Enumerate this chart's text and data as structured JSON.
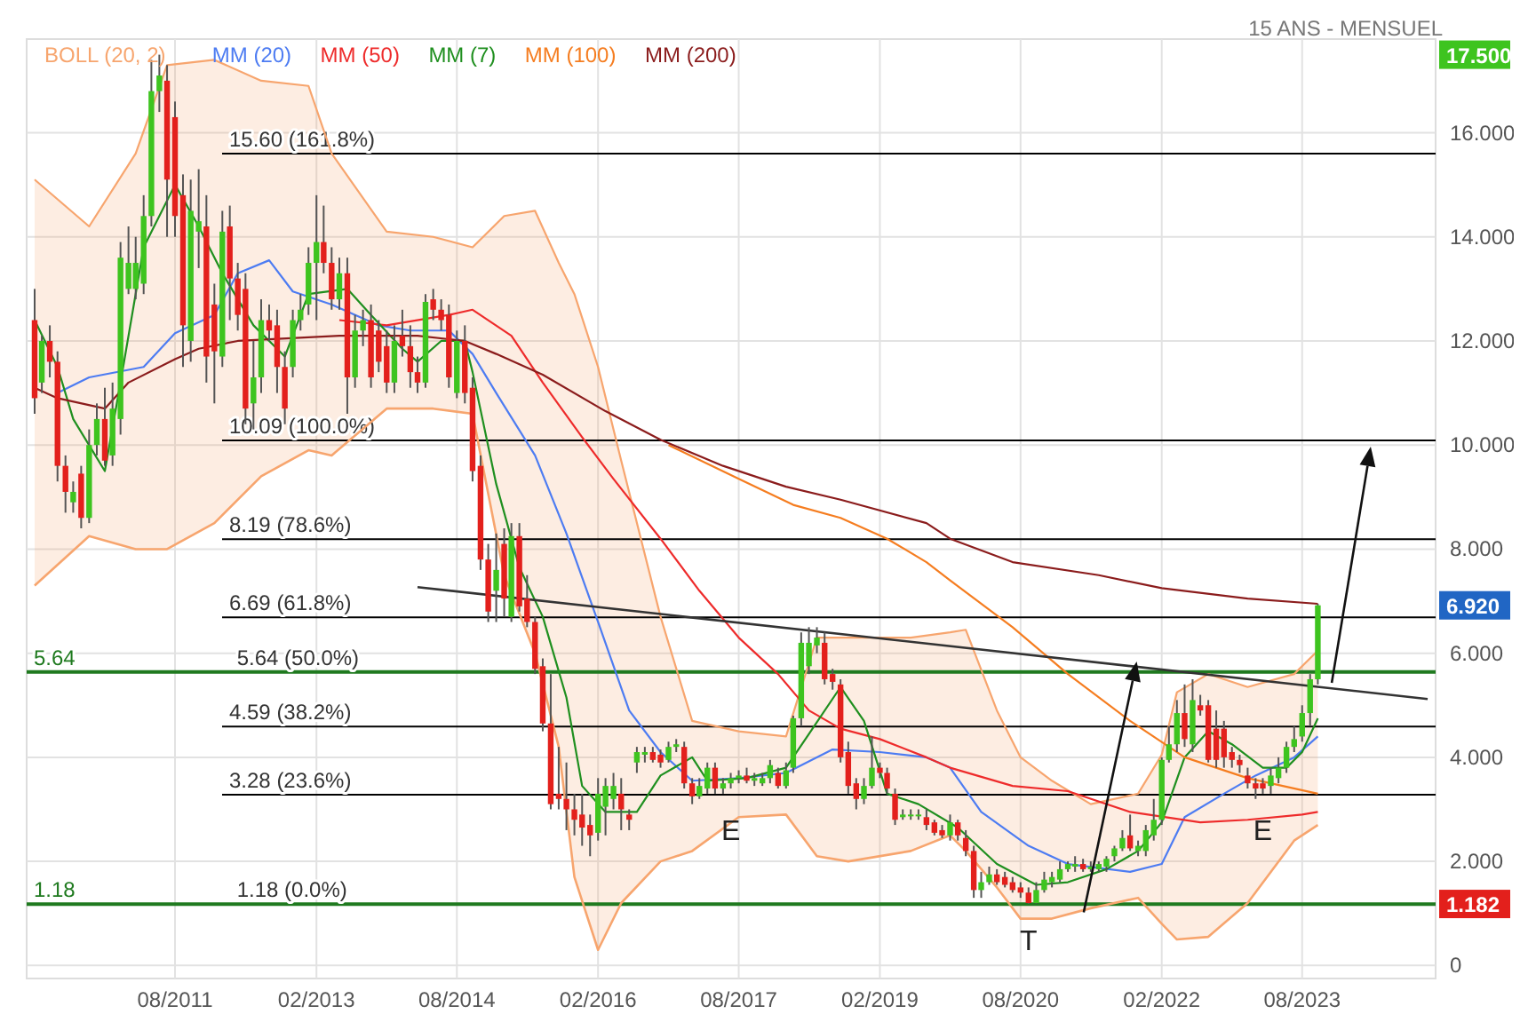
{
  "chart_data": {
    "type": "candlestick",
    "title": "15 ANS - MENSUEL",
    "x": [
      "2010-02",
      "2010-03",
      "2010-04",
      "2010-05",
      "2010-06",
      "2010-07",
      "2010-08",
      "2010-09",
      "2010-10",
      "2010-11",
      "2010-12",
      "2011-01",
      "2011-02",
      "2011-03",
      "2011-04",
      "2011-05",
      "2011-06",
      "2011-07",
      "2011-08",
      "2011-09",
      "2011-10",
      "2011-11",
      "2011-12",
      "2012-01",
      "2012-02",
      "2012-03",
      "2012-04",
      "2012-05",
      "2012-06",
      "2012-07",
      "2012-08",
      "2012-09",
      "2012-10",
      "2012-11",
      "2012-12",
      "2013-01",
      "2013-02",
      "2013-03",
      "2013-04",
      "2013-05",
      "2013-06",
      "2013-07",
      "2013-08",
      "2013-09",
      "2013-10",
      "2013-11",
      "2013-12",
      "2014-01",
      "2014-02",
      "2014-03",
      "2014-04",
      "2014-05",
      "2014-06",
      "2014-07",
      "2014-08",
      "2014-09",
      "2014-10",
      "2014-11",
      "2014-12",
      "2015-01",
      "2015-02",
      "2015-03",
      "2015-04",
      "2015-05",
      "2015-06",
      "2015-07",
      "2015-08",
      "2015-09",
      "2015-10",
      "2015-11",
      "2015-12",
      "2016-01",
      "2016-02",
      "2016-03",
      "2016-04",
      "2016-05",
      "2016-06",
      "2016-07",
      "2016-08",
      "2016-09",
      "2016-10",
      "2016-11",
      "2016-12",
      "2017-01",
      "2017-02",
      "2017-03",
      "2017-04",
      "2017-05",
      "2017-06",
      "2017-07",
      "2017-08",
      "2017-09",
      "2017-10",
      "2017-11",
      "2017-12",
      "2018-01",
      "2018-02",
      "2018-03",
      "2018-04",
      "2018-05",
      "2018-06",
      "2018-07",
      "2018-08",
      "2018-09",
      "2018-10",
      "2018-11",
      "2018-12",
      "2019-01",
      "2019-02",
      "2019-03",
      "2019-04",
      "2019-05",
      "2019-06",
      "2019-07",
      "2019-08",
      "2019-09",
      "2019-10",
      "2019-11",
      "2019-12",
      "2020-01",
      "2020-02",
      "2020-03",
      "2020-04",
      "2020-05",
      "2020-06",
      "2020-07",
      "2020-08",
      "2020-09",
      "2020-10",
      "2020-11",
      "2020-12",
      "2021-01",
      "2021-02",
      "2021-03",
      "2021-04",
      "2021-05",
      "2021-06",
      "2021-07",
      "2021-08",
      "2021-09",
      "2021-10",
      "2021-11",
      "2021-12",
      "2022-01",
      "2022-02",
      "2022-03",
      "2022-04",
      "2022-05",
      "2022-06",
      "2022-07",
      "2022-08",
      "2022-09",
      "2022-10",
      "2022-11",
      "2022-12",
      "2023-01",
      "2023-02",
      "2023-03",
      "2023-04",
      "2023-05",
      "2023-06",
      "2023-07",
      "2023-08",
      "2023-09",
      "2023-10"
    ],
    "ohlc": [
      [
        12.4,
        13.0,
        10.6,
        10.9
      ],
      [
        11.2,
        12.1,
        11.0,
        12.0
      ],
      [
        12.0,
        12.3,
        11.3,
        11.6
      ],
      [
        11.6,
        11.8,
        9.3,
        9.6
      ],
      [
        9.6,
        9.8,
        8.7,
        9.1
      ],
      [
        8.9,
        9.3,
        8.7,
        9.1
      ],
      [
        9.45,
        9.6,
        8.4,
        8.6
      ],
      [
        8.6,
        10.3,
        8.5,
        10.0
      ],
      [
        10.0,
        10.8,
        9.8,
        10.5
      ],
      [
        10.5,
        11.1,
        9.6,
        9.7
      ],
      [
        9.8,
        11.2,
        9.6,
        10.7
      ],
      [
        10.5,
        13.9,
        10.2,
        13.6
      ],
      [
        13.0,
        14.2,
        12.9,
        13.5
      ],
      [
        13.0,
        14.0,
        12.8,
        13.5
      ],
      [
        13.1,
        14.8,
        12.9,
        14.4
      ],
      [
        14.4,
        17.4,
        14.2,
        16.8
      ],
      [
        16.8,
        17.5,
        16.4,
        17.1
      ],
      [
        17.0,
        17.3,
        14.0,
        15.1
      ],
      [
        16.3,
        16.6,
        14.0,
        14.4
      ],
      [
        14.8,
        15.2,
        11.5,
        12.3
      ],
      [
        12.0,
        15.1,
        11.6,
        14.5
      ],
      [
        14.1,
        15.3,
        13.4,
        14.3
      ],
      [
        14.2,
        14.8,
        11.2,
        11.7
      ],
      [
        12.7,
        13.1,
        10.8,
        11.8
      ],
      [
        11.7,
        14.5,
        11.5,
        14.1
      ],
      [
        14.2,
        14.6,
        12.4,
        13.2
      ],
      [
        13.2,
        13.5,
        12.2,
        12.5
      ],
      [
        13.0,
        13.3,
        10.4,
        10.7
      ],
      [
        10.8,
        12.0,
        10.3,
        11.3
      ],
      [
        11.3,
        12.8,
        11.0,
        12.4
      ],
      [
        12.4,
        12.7,
        12.0,
        12.2
      ],
      [
        12.3,
        12.6,
        11.0,
        11.5
      ],
      [
        11.5,
        11.8,
        10.4,
        10.7
      ],
      [
        11.5,
        12.6,
        11.3,
        12.4
      ],
      [
        12.4,
        12.9,
        12.2,
        12.6
      ],
      [
        12.7,
        13.8,
        12.5,
        13.5
      ],
      [
        13.5,
        14.8,
        12.4,
        13.9
      ],
      [
        13.9,
        14.6,
        13.3,
        13.5
      ],
      [
        13.5,
        13.8,
        12.6,
        12.8
      ],
      [
        12.8,
        13.6,
        12.6,
        13.3
      ],
      [
        13.3,
        13.6,
        10.6,
        11.3
      ],
      [
        11.3,
        12.5,
        11.1,
        12.2
      ],
      [
        12.2,
        12.6,
        11.9,
        12.4
      ],
      [
        12.4,
        12.7,
        11.1,
        11.3
      ],
      [
        12.2,
        12.4,
        11.4,
        11.6
      ],
      [
        11.9,
        12.2,
        11.0,
        11.2
      ],
      [
        11.2,
        12.3,
        11.0,
        12.0
      ],
      [
        12.1,
        12.6,
        11.7,
        11.9
      ],
      [
        11.9,
        12.3,
        11.1,
        11.4
      ],
      [
        11.4,
        11.7,
        11.0,
        11.2
      ],
      [
        11.2,
        12.9,
        11.1,
        12.75
      ],
      [
        12.8,
        13.0,
        12.4,
        12.6
      ],
      [
        12.6,
        12.8,
        12.2,
        12.4
      ],
      [
        12.5,
        12.7,
        11.1,
        11.3
      ],
      [
        11.0,
        12.2,
        10.9,
        12.0
      ],
      [
        12.0,
        12.3,
        10.8,
        11.0
      ],
      [
        11.1,
        11.3,
        9.3,
        9.5
      ],
      [
        9.6,
        9.8,
        7.6,
        7.8
      ],
      [
        7.8,
        8.1,
        6.6,
        6.8
      ],
      [
        7.2,
        8.3,
        6.6,
        7.6
      ],
      [
        8.1,
        8.4,
        6.7,
        7.05
      ],
      [
        6.7,
        8.5,
        6.6,
        8.25
      ],
      [
        8.25,
        8.5,
        6.8,
        6.9
      ],
      [
        7.05,
        7.5,
        6.5,
        6.6
      ],
      [
        6.6,
        6.7,
        5.6,
        5.7
      ],
      [
        5.75,
        5.9,
        4.5,
        4.65
      ],
      [
        4.65,
        5.6,
        3.0,
        3.1
      ],
      [
        3.3,
        4.2,
        3.0,
        3.2
      ],
      [
        3.2,
        3.9,
        2.6,
        3.0
      ],
      [
        3.0,
        3.3,
        2.5,
        2.8
      ],
      [
        2.9,
        3.3,
        2.3,
        2.65
      ],
      [
        2.7,
        2.9,
        2.1,
        2.5
      ],
      [
        2.55,
        3.6,
        2.4,
        3.3
      ],
      [
        3.05,
        3.6,
        2.5,
        3.45
      ],
      [
        3.2,
        3.7,
        3.0,
        3.45
      ],
      [
        3.3,
        3.6,
        2.6,
        3.0
      ],
      [
        2.9,
        3.0,
        2.6,
        2.8
      ],
      [
        3.9,
        4.2,
        3.7,
        4.1
      ],
      [
        4.05,
        4.2,
        3.9,
        4.1
      ],
      [
        4.1,
        4.2,
        3.9,
        3.95
      ],
      [
        4.05,
        4.15,
        3.8,
        3.9
      ],
      [
        3.95,
        4.3,
        3.9,
        4.2
      ],
      [
        4.2,
        4.35,
        4.1,
        4.25
      ],
      [
        4.2,
        4.3,
        3.4,
        3.5
      ],
      [
        3.5,
        3.6,
        3.1,
        3.25
      ],
      [
        3.25,
        3.6,
        3.2,
        3.45
      ],
      [
        3.4,
        3.9,
        3.3,
        3.8
      ],
      [
        3.8,
        3.9,
        3.3,
        3.4
      ],
      [
        3.4,
        3.6,
        3.3,
        3.5
      ],
      [
        3.5,
        3.7,
        3.4,
        3.6
      ],
      [
        3.6,
        3.75,
        3.5,
        3.65
      ],
      [
        3.65,
        3.8,
        3.5,
        3.55
      ],
      [
        3.55,
        3.7,
        3.45,
        3.6
      ],
      [
        3.5,
        3.7,
        3.45,
        3.6
      ],
      [
        3.6,
        3.95,
        3.5,
        3.85
      ],
      [
        3.7,
        3.8,
        3.4,
        3.45
      ],
      [
        3.45,
        3.9,
        3.4,
        3.75
      ],
      [
        3.8,
        4.8,
        3.7,
        4.75
      ],
      [
        4.75,
        6.4,
        4.6,
        6.2
      ],
      [
        5.75,
        6.5,
        5.6,
        6.2
      ],
      [
        6.15,
        6.5,
        6.0,
        6.3
      ],
      [
        6.2,
        6.4,
        5.4,
        5.5
      ],
      [
        5.6,
        5.7,
        5.3,
        5.45
      ],
      [
        5.4,
        5.5,
        3.9,
        4.0
      ],
      [
        4.1,
        4.3,
        3.3,
        3.45
      ],
      [
        3.5,
        3.6,
        3.0,
        3.2
      ],
      [
        3.2,
        3.6,
        3.1,
        3.45
      ],
      [
        3.45,
        4.4,
        3.4,
        3.8
      ],
      [
        3.8,
        3.9,
        3.6,
        3.7
      ],
      [
        3.7,
        3.8,
        3.3,
        3.4
      ],
      [
        3.3,
        3.4,
        2.7,
        2.8
      ],
      [
        2.85,
        3.0,
        2.8,
        2.9
      ],
      [
        2.9,
        3.0,
        2.8,
        2.9
      ],
      [
        2.9,
        3.0,
        2.8,
        2.9
      ],
      [
        2.85,
        3.0,
        2.6,
        2.7
      ],
      [
        2.75,
        2.8,
        2.5,
        2.55
      ],
      [
        2.6,
        2.7,
        2.45,
        2.5
      ],
      [
        2.5,
        2.9,
        2.4,
        2.75
      ],
      [
        2.75,
        2.8,
        2.4,
        2.5
      ],
      [
        2.45,
        2.6,
        2.1,
        2.2
      ],
      [
        2.2,
        2.3,
        1.3,
        1.45
      ],
      [
        1.45,
        1.8,
        1.3,
        1.6
      ],
      [
        1.6,
        1.9,
        1.55,
        1.75
      ],
      [
        1.75,
        1.85,
        1.55,
        1.6
      ],
      [
        1.7,
        1.8,
        1.5,
        1.55
      ],
      [
        1.6,
        1.7,
        1.4,
        1.45
      ],
      [
        1.5,
        1.6,
        1.3,
        1.4
      ],
      [
        1.4,
        1.5,
        1.182,
        1.2
      ],
      [
        1.2,
        1.6,
        1.19,
        1.45
      ],
      [
        1.45,
        1.8,
        1.4,
        1.65
      ],
      [
        1.6,
        1.8,
        1.5,
        1.7
      ],
      [
        1.65,
        2.0,
        1.6,
        1.85
      ],
      [
        1.85,
        2.0,
        1.8,
        1.95
      ],
      [
        1.9,
        2.1,
        1.8,
        1.95
      ],
      [
        1.95,
        2.05,
        1.8,
        1.85
      ],
      [
        1.85,
        2.0,
        1.8,
        1.9
      ],
      [
        1.85,
        2.0,
        1.8,
        1.95
      ],
      [
        1.9,
        2.1,
        1.8,
        2.05
      ],
      [
        2.1,
        2.3,
        2.0,
        2.25
      ],
      [
        2.25,
        2.6,
        2.2,
        2.45
      ],
      [
        2.5,
        2.9,
        2.2,
        2.25
      ],
      [
        2.2,
        2.4,
        2.1,
        2.3
      ],
      [
        2.2,
        2.7,
        2.1,
        2.6
      ],
      [
        2.5,
        3.2,
        2.4,
        2.8
      ],
      [
        2.8,
        4.0,
        2.7,
        3.95
      ],
      [
        3.95,
        4.6,
        3.9,
        4.25
      ],
      [
        4.25,
        5.1,
        4.1,
        4.85
      ],
      [
        4.85,
        5.4,
        4.2,
        4.35
      ],
      [
        4.25,
        5.5,
        4.1,
        5.1
      ],
      [
        5.0,
        5.2,
        4.8,
        4.9
      ],
      [
        5.0,
        5.1,
        3.9,
        3.95
      ],
      [
        4.55,
        4.9,
        3.8,
        3.95
      ],
      [
        4.55,
        4.7,
        3.8,
        4.0
      ],
      [
        4.1,
        4.2,
        3.8,
        3.95
      ],
      [
        3.95,
        4.05,
        3.7,
        3.85
      ],
      [
        3.65,
        3.8,
        3.4,
        3.5
      ],
      [
        3.5,
        3.6,
        3.2,
        3.4
      ],
      [
        3.5,
        3.6,
        3.3,
        3.4
      ],
      [
        3.45,
        3.8,
        3.3,
        3.65
      ],
      [
        3.6,
        4.0,
        3.5,
        3.8
      ],
      [
        3.8,
        4.3,
        3.7,
        4.2
      ],
      [
        4.2,
        4.6,
        4.1,
        4.35
      ],
      [
        4.4,
        5.0,
        4.3,
        4.85
      ],
      [
        4.85,
        5.6,
        4.6,
        5.5
      ],
      [
        5.5,
        6.95,
        5.4,
        6.92
      ]
    ],
    "series": [
      {
        "name": "BOLL (20, 2)",
        "type": "line",
        "color": "#f7a56e",
        "x": [
          "2010-02",
          "2010-09",
          "2011-03",
          "2011-07",
          "2012-01",
          "2012-07",
          "2013-01",
          "2013-04",
          "2013-11",
          "2014-05",
          "2014-10",
          "2015-02",
          "2015-06",
          "2015-09",
          "2015-11",
          "2016-02",
          "2016-05",
          "2016-10",
          "2017-02",
          "2017-08",
          "2018-02",
          "2018-06",
          "2018-10",
          "2019-06",
          "2019-11",
          "2020-01",
          "2020-05",
          "2020-08",
          "2020-12",
          "2021-05",
          "2021-11",
          "2022-02",
          "2022-04",
          "2022-08",
          "2023-01",
          "2023-07",
          "2023-10"
        ],
        "values": [
          15.1,
          14.2,
          15.6,
          17.3,
          17.4,
          17.0,
          16.9,
          15.6,
          14.1,
          14.0,
          13.8,
          14.4,
          14.5,
          13.5,
          12.9,
          11.5,
          9.7,
          6.7,
          4.7,
          4.5,
          4.4,
          6.3,
          6.3,
          6.3,
          6.4,
          6.45,
          4.9,
          4.0,
          3.55,
          3.1,
          3.3,
          4.05,
          5.25,
          5.6,
          5.35,
          5.6,
          6.05
        ]
      },
      {
        "type": "line",
        "color": "#f7a56e",
        "x": [
          "2010-02",
          "2010-09",
          "2011-03",
          "2011-07",
          "2012-01",
          "2012-07",
          "2013-01",
          "2013-04",
          "2013-11",
          "2014-05",
          "2014-10",
          "2015-02",
          "2015-06",
          "2015-09",
          "2015-11",
          "2016-02",
          "2016-05",
          "2016-10",
          "2017-02",
          "2017-08",
          "2018-02",
          "2018-06",
          "2018-10",
          "2019-06",
          "2019-11",
          "2020-01",
          "2020-05",
          "2020-08",
          "2020-12",
          "2021-05",
          "2021-11",
          "2022-02",
          "2022-04",
          "2022-08",
          "2023-01",
          "2023-07",
          "2023-10"
        ],
        "values": [
          7.3,
          8.25,
          8.0,
          8.0,
          8.5,
          9.4,
          9.9,
          9.8,
          10.7,
          10.7,
          10.6,
          7.5,
          6.0,
          4.2,
          1.7,
          0.3,
          1.2,
          2.0,
          2.2,
          2.85,
          2.9,
          2.1,
          2.0,
          2.2,
          2.5,
          2.2,
          1.5,
          0.9,
          0.9,
          1.1,
          1.3,
          0.8,
          0.5,
          0.55,
          1.2,
          2.4,
          2.7
        ]
      },
      {
        "name": "MM (20)",
        "type": "line",
        "color": "#4d7cf2",
        "x": [
          "2010-05",
          "2010-09",
          "2011-04",
          "2011-08",
          "2012-01",
          "2012-04",
          "2012-08",
          "2012-11",
          "2013-04",
          "2013-10",
          "2014-02",
          "2014-07",
          "2014-10",
          "2015-01",
          "2015-06",
          "2015-10",
          "2016-02",
          "2016-06",
          "2016-10",
          "2017-02",
          "2017-08",
          "2018-02",
          "2018-08",
          "2019-02",
          "2019-08",
          "2019-11",
          "2020-03",
          "2020-09",
          "2021-02",
          "2021-10",
          "2022-02",
          "2022-05",
          "2022-10",
          "2023-02",
          "2023-07",
          "2023-10"
        ],
        "values": [
          11.0,
          11.3,
          11.5,
          12.15,
          12.5,
          13.3,
          13.55,
          12.95,
          12.7,
          12.3,
          12.2,
          12.2,
          11.75,
          11.0,
          9.8,
          8.3,
          6.6,
          4.9,
          4.1,
          3.55,
          3.6,
          3.7,
          4.15,
          4.1,
          4.0,
          3.8,
          2.95,
          2.3,
          1.95,
          1.8,
          1.95,
          2.85,
          3.3,
          3.65,
          4.0,
          4.4
        ]
      },
      {
        "name": "MM (50)",
        "type": "line",
        "color": "#ee2b2b",
        "x": [
          "2013-05",
          "2013-11",
          "2014-07",
          "2014-10",
          "2015-03",
          "2015-07",
          "2015-12",
          "2016-04",
          "2016-10",
          "2017-03",
          "2017-08",
          "2018-01",
          "2018-05",
          "2018-09",
          "2019-02",
          "2019-08",
          "2019-11",
          "2020-07",
          "2021-02",
          "2021-10",
          "2022-07",
          "2023-01",
          "2023-08",
          "2023-10"
        ],
        "values": [
          12.4,
          12.3,
          12.5,
          12.6,
          12.1,
          11.2,
          10.15,
          9.35,
          8.2,
          7.2,
          6.3,
          5.6,
          4.9,
          4.55,
          4.35,
          4.0,
          3.8,
          3.45,
          3.35,
          2.95,
          2.75,
          2.8,
          2.9,
          2.95
        ]
      },
      {
        "name": "MM (7)",
        "type": "line",
        "color": "#1f8f1f",
        "x": [
          "2010-02",
          "2010-05",
          "2010-07",
          "2010-11",
          "2011-01",
          "2011-04",
          "2011-08",
          "2011-11",
          "2012-02",
          "2012-06",
          "2012-10",
          "2013-01",
          "2013-06",
          "2013-09",
          "2014-01",
          "2014-03",
          "2014-06",
          "2014-09",
          "2014-10",
          "2015-01",
          "2015-04",
          "2015-07",
          "2015-10",
          "2015-12",
          "2016-03",
          "2016-07",
          "2016-10",
          "2017-02",
          "2017-04",
          "2017-09",
          "2018-02",
          "2018-05",
          "2018-09",
          "2018-12",
          "2019-03",
          "2019-07",
          "2019-12",
          "2020-05",
          "2020-10",
          "2021-02",
          "2021-07",
          "2021-11",
          "2022-02",
          "2022-05",
          "2022-08",
          "2022-11",
          "2023-03",
          "2023-06",
          "2023-08",
          "2023-10"
        ],
        "values": [
          12.4,
          11.5,
          10.5,
          9.5,
          11.2,
          13.8,
          15.0,
          14.2,
          13.3,
          12.3,
          11.7,
          12.9,
          13.0,
          12.5,
          11.85,
          11.6,
          12.0,
          12.0,
          11.4,
          9.25,
          7.65,
          6.7,
          5.15,
          3.45,
          2.95,
          2.95,
          3.65,
          4.0,
          3.55,
          3.6,
          3.8,
          4.45,
          5.35,
          4.7,
          3.3,
          3.1,
          2.65,
          1.95,
          1.55,
          1.6,
          1.85,
          2.2,
          2.75,
          4.0,
          4.5,
          4.25,
          3.8,
          3.8,
          4.1,
          4.75
        ]
      },
      {
        "name": "MM (100)",
        "type": "line",
        "color": "#f57d20",
        "x": [
          "2016-11",
          "2017-08",
          "2018-03",
          "2018-09",
          "2019-03",
          "2019-08",
          "2019-11",
          "2020-07",
          "2021-02",
          "2021-10",
          "2022-05",
          "2023-01",
          "2023-10"
        ],
        "values": [
          10.0,
          9.35,
          8.85,
          8.6,
          8.2,
          7.75,
          7.4,
          6.5,
          5.6,
          4.7,
          4.0,
          3.6,
          3.3
        ]
      },
      {
        "name": "MM (200)",
        "type": "line",
        "color": "#8b1c1c",
        "x": [
          "2010-02",
          "2010-05",
          "2010-11",
          "2011-02",
          "2011-08",
          "2011-11",
          "2012-04",
          "2013-05",
          "2014-03",
          "2014-09",
          "2015-01",
          "2015-07",
          "2016-03",
          "2016-10",
          "2017-06",
          "2018-02",
          "2018-09",
          "2019-08",
          "2019-11",
          "2020-07",
          "2021-06",
          "2022-02",
          "2023-01",
          "2023-10"
        ],
        "values": [
          11.1,
          10.9,
          10.7,
          11.2,
          11.65,
          11.85,
          12.0,
          12.1,
          12.1,
          12.0,
          11.75,
          11.35,
          10.65,
          10.1,
          9.6,
          9.2,
          8.95,
          8.5,
          8.2,
          7.75,
          7.5,
          7.25,
          7.05,
          6.95
        ]
      },
      {
        "type": "line",
        "color": "#333333",
        "x": [
          "2014-03",
          "2024-12"
        ],
        "values": [
          7.27,
          5.12
        ]
      }
    ],
    "ref_lines": [
      {
        "axis": "y",
        "value": 15.6,
        "label": "15.60  (161.8%)"
      },
      {
        "axis": "y",
        "value": 10.09,
        "label": "10.09  (100.0%)"
      },
      {
        "axis": "y",
        "value": 8.19,
        "label": "8.19  (78.6%)"
      },
      {
        "axis": "y",
        "value": 6.69,
        "label": "6.69  (61.8%)"
      },
      {
        "axis": "y",
        "value": 4.59,
        "label": "4.59  (38.2%)"
      },
      {
        "axis": "y",
        "value": 3.28,
        "label": "3.28  (23.6%)"
      },
      {
        "axis": "y",
        "value": 5.64,
        "label": "5.64",
        "color": "#1f7a1f"
      },
      {
        "axis": "y",
        "value": 1.18,
        "label": "1.18",
        "color": "#1f7a1f"
      }
    ],
    "annotations": [
      {
        "text": "5.64  (50.0%)",
        "x": "2012-03",
        "y": 5.64
      },
      {
        "text": "1.18  (0.0%)",
        "x": "2012-03",
        "y": 1.18
      },
      {
        "text": "E",
        "x": "2017-07",
        "y": 3.3
      },
      {
        "text": "T",
        "x": "2020-09",
        "y": 1.182
      },
      {
        "text": "E",
        "x": "2023-03",
        "y": 3.3
      },
      "17.500",
      "6.920",
      "1.182"
    ],
    "xlim": [
      "2010-01",
      "2025-01"
    ],
    "xticks": [
      {
        "value": "2011-08",
        "label": "08/2011"
      },
      {
        "value": "2013-02",
        "label": "02/2013"
      },
      {
        "value": "2014-08",
        "label": "08/2014"
      },
      {
        "value": "2016-02",
        "label": "02/2016"
      },
      {
        "value": "2017-08",
        "label": "08/2017"
      },
      {
        "value": "2019-02",
        "label": "02/2019"
      },
      {
        "value": "2020-08",
        "label": "08/2020"
      },
      {
        "value": "2022-02",
        "label": "02/2022"
      },
      {
        "value": "2023-08",
        "label": "08/2023"
      }
    ],
    "ylim": [
      -0.25,
      17.8
    ],
    "yticks": [
      0,
      {
        "value": 2,
        "label": "2.000"
      },
      {
        "value": 4,
        "label": "4.000"
      },
      {
        "value": 6,
        "label": "6.000"
      },
      {
        "value": 8,
        "label": "8.000"
      },
      {
        "value": 10,
        "label": "10.000"
      },
      {
        "value": 12,
        "label": "12.000"
      },
      {
        "value": 14,
        "label": "14.000"
      },
      {
        "value": 16,
        "label": "16.000"
      }
    ],
    "grid": true,
    "legend": "top left"
  }
}
